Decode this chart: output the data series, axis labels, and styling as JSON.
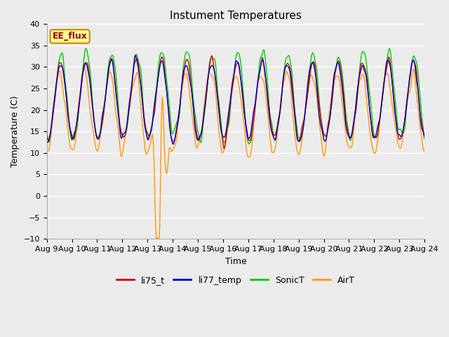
{
  "title": "Instument Temperatures",
  "xlabel": "Time",
  "ylabel": "Temperature (C)",
  "ylim": [
    -10,
    40
  ],
  "xlim": [
    0,
    15
  ],
  "x_tick_labels": [
    "Aug 9",
    "Aug 10",
    "Aug 11",
    "Aug 12",
    "Aug 13",
    "Aug 14",
    "Aug 15",
    "Aug 16",
    "Aug 17",
    "Aug 18",
    "Aug 19",
    "Aug 20",
    "Aug 21",
    "Aug 22",
    "Aug 23",
    "Aug 24"
  ],
  "legend_labels": [
    "li75_t",
    "li77_temp",
    "SonicT",
    "AirT"
  ],
  "line_colors": [
    "#cc0000",
    "#0000cc",
    "#00cc00",
    "#ff9900"
  ],
  "plot_bg_color": "#ebebeb",
  "fig_bg_color": "#ebebeb",
  "grid_color": "#ffffff",
  "annotation_text": "EE_flux",
  "annotation_bg": "#ffff99",
  "annotation_border": "#cc8800",
  "tick_fontsize": 8,
  "title_fontsize": 11
}
